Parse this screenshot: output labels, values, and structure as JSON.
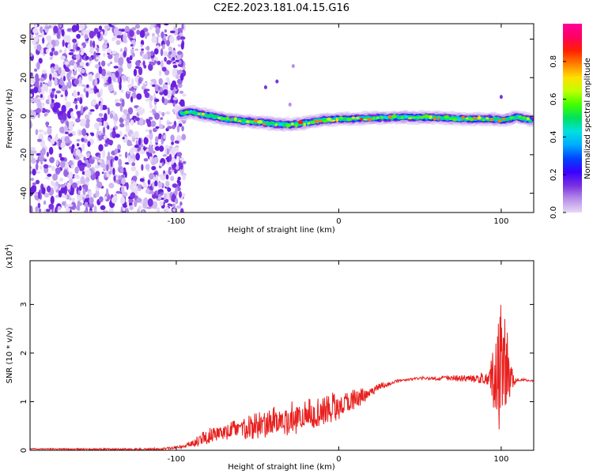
{
  "title": "C2E2.2023.181.04.15.G16",
  "chart_data": [
    {
      "type": "heatmap",
      "xlabel": "Height of straight line (km)",
      "ylabel": "Frequency (Hz)",
      "xlim": [
        -190,
        120
      ],
      "ylim": [
        -50,
        48
      ],
      "x_ticks": [
        -100,
        0,
        100
      ],
      "y_ticks": [
        -40,
        -20,
        0,
        20,
        40
      ],
      "colorbar": {
        "label": "Normalized spectral amplitude",
        "range": [
          0,
          1
        ],
        "ticks": [
          "0.0",
          "0.2",
          "0.4",
          "0.6",
          "0.8"
        ],
        "colormap": [
          "#e6d8f5",
          "#b88ee8",
          "#7a30e0",
          "#3a00ff",
          "#0044ff",
          "#00aaff",
          "#00e0e0",
          "#00e060",
          "#40ff00",
          "#c0ff00",
          "#ffe000",
          "#ff8000",
          "#ff2000",
          "#ff0060",
          "#ff0099"
        ]
      },
      "noise_region_x": [
        -190,
        -97
      ],
      "ridge": [
        {
          "x": -97,
          "f": 1.5
        },
        {
          "x": -90,
          "f": 2.0
        },
        {
          "x": -85,
          "f": 1.0
        },
        {
          "x": -78,
          "f": 0.0
        },
        {
          "x": -70,
          "f": -1.5
        },
        {
          "x": -60,
          "f": -2.5
        },
        {
          "x": -50,
          "f": -3.0
        },
        {
          "x": -40,
          "f": -4.0
        },
        {
          "x": -30,
          "f": -4.5
        },
        {
          "x": -20,
          "f": -3.5
        },
        {
          "x": -10,
          "f": -2.0
        },
        {
          "x": 0,
          "f": -1.5
        },
        {
          "x": 20,
          "f": -1.0
        },
        {
          "x": 40,
          "f": -0.5
        },
        {
          "x": 60,
          "f": -0.8
        },
        {
          "x": 80,
          "f": -1.5
        },
        {
          "x": 95,
          "f": -1.5
        },
        {
          "x": 100,
          "f": -2.0
        },
        {
          "x": 110,
          "f": -0.5
        },
        {
          "x": 118,
          "f": -2.0
        }
      ]
    },
    {
      "type": "line",
      "xlabel": "Height of straight line (km)",
      "ylabel": "SNR (10 * v/v)",
      "y_scale_label": "(x10",
      "y_scale_exp": "4",
      "y_scale_close": ")",
      "xlim": [
        -190,
        120
      ],
      "ylim": [
        0,
        3.9
      ],
      "x_ticks": [
        -100,
        0,
        100
      ],
      "y_ticks": [
        0,
        1,
        2,
        3
      ],
      "series": [
        {
          "color": "#e8201e",
          "points": [
            {
              "x": -190,
              "y": 0.03
            },
            {
              "x": -150,
              "y": 0.02
            },
            {
              "x": -110,
              "y": 0.02
            },
            {
              "x": -95,
              "y": 0.08
            },
            {
              "x": -85,
              "y": 0.2
            },
            {
              "x": -75,
              "y": 0.35
            },
            {
              "x": -65,
              "y": 0.4
            },
            {
              "x": -55,
              "y": 0.45
            },
            {
              "x": -45,
              "y": 0.5
            },
            {
              "x": -35,
              "y": 0.6
            },
            {
              "x": -25,
              "y": 0.65
            },
            {
              "x": -15,
              "y": 0.75
            },
            {
              "x": -5,
              "y": 0.85
            },
            {
              "x": 5,
              "y": 0.95
            },
            {
              "x": 15,
              "y": 1.1
            },
            {
              "x": 25,
              "y": 1.3
            },
            {
              "x": 35,
              "y": 1.42
            },
            {
              "x": 50,
              "y": 1.48
            },
            {
              "x": 70,
              "y": 1.48
            },
            {
              "x": 90,
              "y": 1.47
            },
            {
              "x": 100,
              "y": 1.48
            },
            {
              "x": 110,
              "y": 1.45
            },
            {
              "x": 120,
              "y": 1.43
            }
          ],
          "noise_amplitude": [
            {
              "x": -190,
              "a": 0.01
            },
            {
              "x": -95,
              "a": 0.03
            },
            {
              "x": -85,
              "a": 0.15
            },
            {
              "x": -60,
              "a": 0.25
            },
            {
              "x": -30,
              "a": 0.4
            },
            {
              "x": -10,
              "a": 0.35
            },
            {
              "x": 0,
              "a": 0.35
            },
            {
              "x": 10,
              "a": 0.25
            },
            {
              "x": 20,
              "a": 0.1
            },
            {
              "x": 40,
              "a": 0.02
            },
            {
              "x": 60,
              "a": 0.05
            },
            {
              "x": 80,
              "a": 0.08
            },
            {
              "x": 92,
              "a": 0.15
            },
            {
              "x": 96,
              "a": 0.9
            },
            {
              "x": 100,
              "a": 1.8
            },
            {
              "x": 103,
              "a": 1.2
            },
            {
              "x": 106,
              "a": 0.3
            },
            {
              "x": 110,
              "a": 0.03
            },
            {
              "x": 120,
              "a": 0.02
            }
          ]
        }
      ]
    }
  ]
}
